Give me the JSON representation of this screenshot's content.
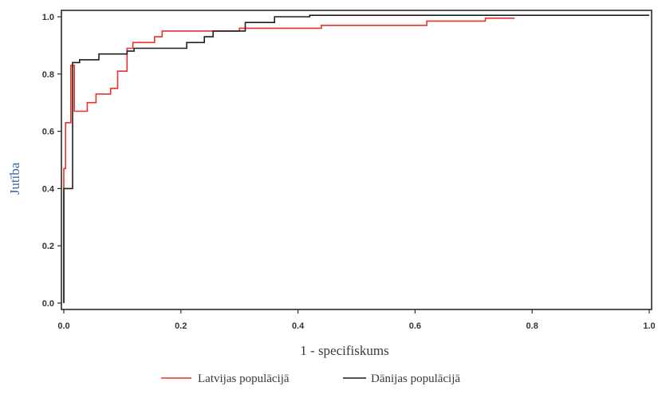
{
  "chart_data": {
    "type": "line",
    "xlabel": "1 - specifiskums",
    "ylabel": "Jutība",
    "xlim": [
      0,
      1
    ],
    "ylim": [
      0,
      1
    ],
    "x_ticks": [
      "0.0",
      "0.2",
      "0.4",
      "0.6",
      "0.8",
      "1.0"
    ],
    "y_ticks": [
      "0.0",
      "0.2",
      "0.4",
      "0.6",
      "0.8",
      "1.0"
    ],
    "grid": false,
    "legend_position": "bottom",
    "series": [
      {
        "name": "Latvijas populācijā",
        "color": "#e8322e",
        "x": [
          0.0,
          0.0,
          0.003,
          0.003,
          0.012,
          0.012,
          0.018,
          0.018,
          0.04,
          0.04,
          0.055,
          0.055,
          0.08,
          0.08,
          0.092,
          0.092,
          0.108,
          0.108,
          0.118,
          0.118,
          0.155,
          0.155,
          0.168,
          0.168,
          0.3,
          0.3,
          0.44,
          0.44,
          0.62,
          0.62,
          0.72,
          0.72,
          0.77
        ],
        "y": [
          0.0,
          0.47,
          0.47,
          0.63,
          0.63,
          0.83,
          0.83,
          0.67,
          0.67,
          0.7,
          0.7,
          0.73,
          0.73,
          0.75,
          0.75,
          0.81,
          0.81,
          0.89,
          0.89,
          0.91,
          0.91,
          0.93,
          0.93,
          0.95,
          0.95,
          0.96,
          0.96,
          0.97,
          0.97,
          0.985,
          0.985,
          0.995,
          0.995
        ]
      },
      {
        "name": "Dānijas populācijā",
        "color": "#1f1f1f",
        "x": [
          0.0,
          0.0,
          0.015,
          0.015,
          0.027,
          0.027,
          0.06,
          0.06,
          0.108,
          0.108,
          0.12,
          0.12,
          0.21,
          0.21,
          0.24,
          0.24,
          0.255,
          0.255,
          0.31,
          0.31,
          0.36,
          0.36,
          0.42,
          0.42,
          1.0
        ],
        "y": [
          0.0,
          0.4,
          0.4,
          0.84,
          0.84,
          0.85,
          0.85,
          0.87,
          0.87,
          0.88,
          0.88,
          0.89,
          0.89,
          0.91,
          0.91,
          0.93,
          0.93,
          0.95,
          0.95,
          0.98,
          0.98,
          1.0,
          1.0,
          1.005,
          1.005
        ]
      }
    ]
  }
}
